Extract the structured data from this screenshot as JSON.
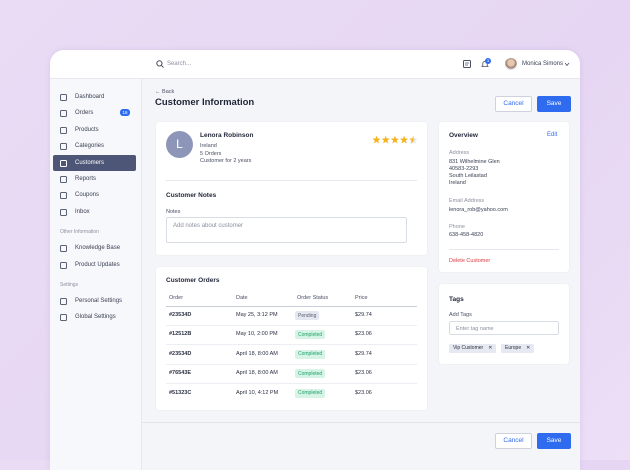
{
  "topbar": {
    "search_placeholder": "Search...",
    "notification_count": "3",
    "user_name": "Monica Simons"
  },
  "sidebar": {
    "main": [
      {
        "label": "Dashboard"
      },
      {
        "label": "Orders",
        "badge": "16"
      },
      {
        "label": "Products"
      },
      {
        "label": "Categories"
      },
      {
        "label": "Customers",
        "active": true
      },
      {
        "label": "Reports"
      },
      {
        "label": "Coupons"
      },
      {
        "label": "Inbox"
      }
    ],
    "sections": [
      {
        "title": "Other Information",
        "items": [
          {
            "label": "Knowledge Base"
          },
          {
            "label": "Product Updates"
          }
        ]
      },
      {
        "title": "Settings",
        "items": [
          {
            "label": "Personal Settings"
          },
          {
            "label": "Global Settings"
          }
        ]
      }
    ]
  },
  "header": {
    "back": "Back",
    "title": "Customer Information",
    "cancel": "Cancel",
    "save": "Save"
  },
  "customer": {
    "initial": "L",
    "name": "Lenora Robinson",
    "details": [
      "Ireland",
      "5 Orders",
      "Customer for 2 years"
    ],
    "rating": 4.5,
    "stars": 5,
    "star_color": "#f5b41b"
  },
  "notes": {
    "title": "Customer Notes",
    "label": "Notes",
    "placeholder": "Add notes about customer"
  },
  "orders": {
    "title": "Customer Orders",
    "columns": [
      "Order",
      "Date",
      "Order Status",
      "Price"
    ],
    "rows": [
      {
        "order": "#23534D",
        "date": "May 25, 3:12 PM",
        "status": "Pending",
        "status_color": "#e4e7ef",
        "status_text_color": "#596176",
        "price": "$29.74"
      },
      {
        "order": "#12512B",
        "date": "May 10, 2:00 PM",
        "status": "Completed",
        "status_color": "#d5f4e5",
        "status_text_color": "#22a06b",
        "price": "$23.06"
      },
      {
        "order": "#23534D",
        "date": "April 18, 8:00 AM",
        "status": "Completed",
        "status_color": "#d5f4e5",
        "status_text_color": "#22a06b",
        "price": "$29.74"
      },
      {
        "order": "#76543E",
        "date": "April 18, 8:00 AM",
        "status": "Completed",
        "status_color": "#d5f4e5",
        "status_text_color": "#22a06b",
        "price": "$23.06"
      },
      {
        "order": "#51323C",
        "date": "April 10, 4:12 PM",
        "status": "Completed",
        "status_color": "#d5f4e5",
        "status_text_color": "#22a06b",
        "price": "$23.06"
      }
    ]
  },
  "overview": {
    "title": "Overview",
    "edit": "Edit",
    "address_label": "Address",
    "address": [
      "831 Wilhelmine Glen",
      "40583-2293",
      "South Leilastad",
      "Ireland"
    ],
    "email_label": "Email Address",
    "email": "lenora_rob@yahoo.com",
    "phone_label": "Phone",
    "phone": "638-458-4820",
    "delete": "Delete Customer"
  },
  "tags": {
    "title": "Tags",
    "label": "Add Tags",
    "placeholder": "Enter tag name",
    "items": [
      "Vip Customer",
      "Europe"
    ]
  },
  "footer": {
    "cancel": "Cancel",
    "save": "Save"
  }
}
